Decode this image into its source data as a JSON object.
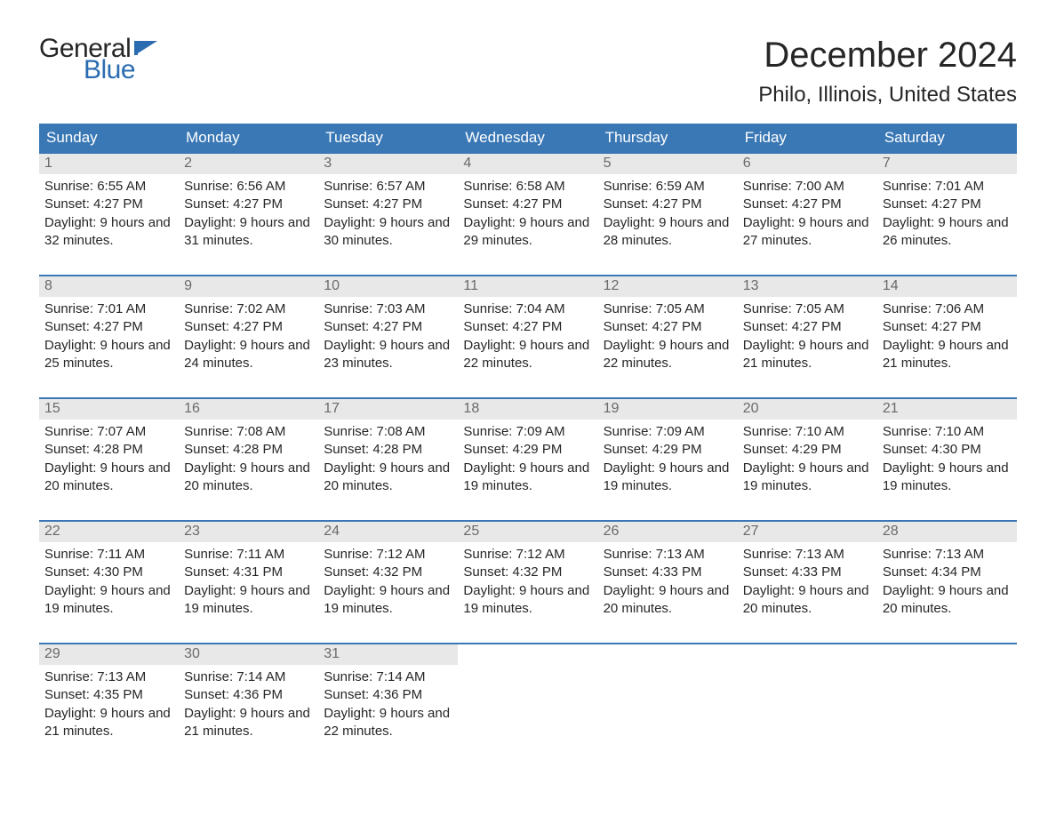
{
  "brand": {
    "word1": "General",
    "word2": "Blue",
    "text_color": "#262626",
    "accent_color": "#2b6cb0",
    "flag_color": "#2b6cb0"
  },
  "header": {
    "month_title": "December 2024",
    "location": "Philo, Illinois, United States"
  },
  "styling": {
    "header_row_bg": "#3a78b5",
    "header_row_text": "#ffffff",
    "week_divider_color": "#3a78b5",
    "day_number_bg": "#e8e8e8",
    "day_number_color": "#6a6a6a",
    "body_text_color": "#262626",
    "page_bg": "#ffffff",
    "title_fontsize_pt": 30,
    "location_fontsize_pt": 18,
    "weekday_fontsize_pt": 13,
    "body_fontsize_pt": 11
  },
  "weekdays": [
    "Sunday",
    "Monday",
    "Tuesday",
    "Wednesday",
    "Thursday",
    "Friday",
    "Saturday"
  ],
  "labels": {
    "sunrise_prefix": "Sunrise: ",
    "sunset_prefix": "Sunset: ",
    "daylight_prefix": "Daylight: "
  },
  "weeks": [
    [
      {
        "n": "1",
        "sunrise": "6:55 AM",
        "sunset": "4:27 PM",
        "daylight": "9 hours and 32 minutes."
      },
      {
        "n": "2",
        "sunrise": "6:56 AM",
        "sunset": "4:27 PM",
        "daylight": "9 hours and 31 minutes."
      },
      {
        "n": "3",
        "sunrise": "6:57 AM",
        "sunset": "4:27 PM",
        "daylight": "9 hours and 30 minutes."
      },
      {
        "n": "4",
        "sunrise": "6:58 AM",
        "sunset": "4:27 PM",
        "daylight": "9 hours and 29 minutes."
      },
      {
        "n": "5",
        "sunrise": "6:59 AM",
        "sunset": "4:27 PM",
        "daylight": "9 hours and 28 minutes."
      },
      {
        "n": "6",
        "sunrise": "7:00 AM",
        "sunset": "4:27 PM",
        "daylight": "9 hours and 27 minutes."
      },
      {
        "n": "7",
        "sunrise": "7:01 AM",
        "sunset": "4:27 PM",
        "daylight": "9 hours and 26 minutes."
      }
    ],
    [
      {
        "n": "8",
        "sunrise": "7:01 AM",
        "sunset": "4:27 PM",
        "daylight": "9 hours and 25 minutes."
      },
      {
        "n": "9",
        "sunrise": "7:02 AM",
        "sunset": "4:27 PM",
        "daylight": "9 hours and 24 minutes."
      },
      {
        "n": "10",
        "sunrise": "7:03 AM",
        "sunset": "4:27 PM",
        "daylight": "9 hours and 23 minutes."
      },
      {
        "n": "11",
        "sunrise": "7:04 AM",
        "sunset": "4:27 PM",
        "daylight": "9 hours and 22 minutes."
      },
      {
        "n": "12",
        "sunrise": "7:05 AM",
        "sunset": "4:27 PM",
        "daylight": "9 hours and 22 minutes."
      },
      {
        "n": "13",
        "sunrise": "7:05 AM",
        "sunset": "4:27 PM",
        "daylight": "9 hours and 21 minutes."
      },
      {
        "n": "14",
        "sunrise": "7:06 AM",
        "sunset": "4:27 PM",
        "daylight": "9 hours and 21 minutes."
      }
    ],
    [
      {
        "n": "15",
        "sunrise": "7:07 AM",
        "sunset": "4:28 PM",
        "daylight": "9 hours and 20 minutes."
      },
      {
        "n": "16",
        "sunrise": "7:08 AM",
        "sunset": "4:28 PM",
        "daylight": "9 hours and 20 minutes."
      },
      {
        "n": "17",
        "sunrise": "7:08 AM",
        "sunset": "4:28 PM",
        "daylight": "9 hours and 20 minutes."
      },
      {
        "n": "18",
        "sunrise": "7:09 AM",
        "sunset": "4:29 PM",
        "daylight": "9 hours and 19 minutes."
      },
      {
        "n": "19",
        "sunrise": "7:09 AM",
        "sunset": "4:29 PM",
        "daylight": "9 hours and 19 minutes."
      },
      {
        "n": "20",
        "sunrise": "7:10 AM",
        "sunset": "4:29 PM",
        "daylight": "9 hours and 19 minutes."
      },
      {
        "n": "21",
        "sunrise": "7:10 AM",
        "sunset": "4:30 PM",
        "daylight": "9 hours and 19 minutes."
      }
    ],
    [
      {
        "n": "22",
        "sunrise": "7:11 AM",
        "sunset": "4:30 PM",
        "daylight": "9 hours and 19 minutes."
      },
      {
        "n": "23",
        "sunrise": "7:11 AM",
        "sunset": "4:31 PM",
        "daylight": "9 hours and 19 minutes."
      },
      {
        "n": "24",
        "sunrise": "7:12 AM",
        "sunset": "4:32 PM",
        "daylight": "9 hours and 19 minutes."
      },
      {
        "n": "25",
        "sunrise": "7:12 AM",
        "sunset": "4:32 PM",
        "daylight": "9 hours and 19 minutes."
      },
      {
        "n": "26",
        "sunrise": "7:13 AM",
        "sunset": "4:33 PM",
        "daylight": "9 hours and 20 minutes."
      },
      {
        "n": "27",
        "sunrise": "7:13 AM",
        "sunset": "4:33 PM",
        "daylight": "9 hours and 20 minutes."
      },
      {
        "n": "28",
        "sunrise": "7:13 AM",
        "sunset": "4:34 PM",
        "daylight": "9 hours and 20 minutes."
      }
    ],
    [
      {
        "n": "29",
        "sunrise": "7:13 AM",
        "sunset": "4:35 PM",
        "daylight": "9 hours and 21 minutes."
      },
      {
        "n": "30",
        "sunrise": "7:14 AM",
        "sunset": "4:36 PM",
        "daylight": "9 hours and 21 minutes."
      },
      {
        "n": "31",
        "sunrise": "7:14 AM",
        "sunset": "4:36 PM",
        "daylight": "9 hours and 22 minutes."
      },
      null,
      null,
      null,
      null
    ]
  ]
}
